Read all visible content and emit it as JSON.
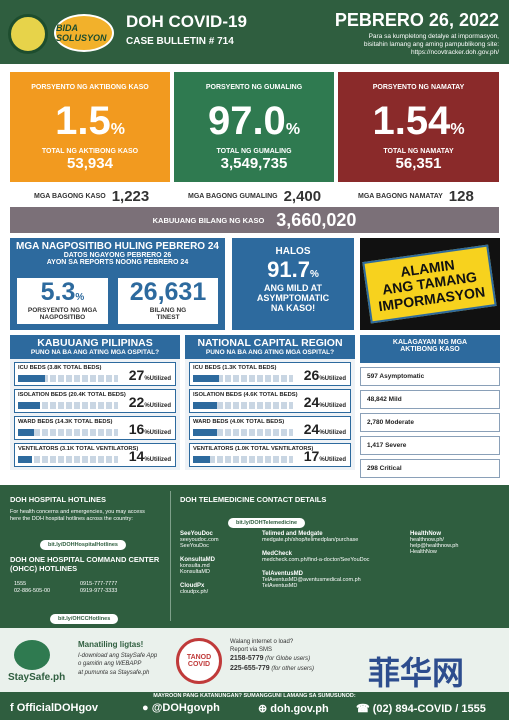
{
  "header": {
    "title": "DOH COVID-19",
    "bulletin": "CASE BULLETIN # 714",
    "logo2_text": "BIDA SOLUSYON",
    "date": "PEBRERO 26, 2022",
    "note1": "Para sa kumpletong detalye at impormasyon,",
    "note2": "bisitahin lamang ang aming pampublikong site:",
    "note3": "https://ncovtracker.doh.gov.ph/"
  },
  "active": {
    "label": "PORSYENTO NG AKTIBONG KASO",
    "pct": "1.5",
    "sub": "TOTAL NG AKTIBONG KASO",
    "num": "53,934",
    "color": "#f29a1f"
  },
  "recovered": {
    "label": "PORSYENTO NG GUMALING",
    "pct": "97.0",
    "sub": "TOTAL NG GUMALING",
    "num": "3,549,735",
    "color": "#2f7a50"
  },
  "deaths": {
    "label": "PORSYENTO NG NAMATAY",
    "pct": "1.54",
    "sub": "TOTAL NG NAMATAY",
    "num": "56,351",
    "color": "#8a2a2a"
  },
  "new": {
    "cases_label": "MGA BAGONG KASO",
    "cases": "1,223",
    "rec_label": "MGA BAGONG GUMALING",
    "rec": "2,400",
    "death_label": "MGA BAGONG NAMATAY",
    "death": "128"
  },
  "total": {
    "label": "KABUUANG BILANG NG KASO",
    "value": "3,660,020"
  },
  "positivity": {
    "title": "MGA NAGPOSITIBO HULING PEBRERO 24",
    "sub1": "DATOS NGAYONG PEBRERO 26",
    "sub2": "AYON SA REPORTS NOONG PEBRERO 24",
    "rate": "5.3",
    "rate_label1": "PORSYENTO NG MGA",
    "rate_label2": "NAGPOSITIBO",
    "tested": "26,631",
    "tested_label1": "BILANG NG",
    "tested_label2": "TINEST"
  },
  "halos": {
    "l1": "HALOS",
    "pct": "91.7",
    "l2": "ANG MILD AT",
    "l3": "ASYMPTOMATIC",
    "l4": "NA KASO!"
  },
  "alamin": {
    "l1": "ALAMIN",
    "l2": "ANG TAMANG",
    "l3": "IMPORMASYON"
  },
  "ph": {
    "title": "KABUUANG PILIPINAS",
    "sub": "PUNO NA BA ANG ATING MGA OSPITAL?",
    "rows": [
      {
        "label": "ICU BEDS (3.8K TOTAL BEDS)",
        "pct": "27",
        "util": 0.27
      },
      {
        "label": "ISOLATION BEDS (20.4K TOTAL BEDS)",
        "pct": "22",
        "util": 0.22
      },
      {
        "label": "WARD BEDS (14.3K TOTAL BEDS)",
        "pct": "16",
        "util": 0.16
      },
      {
        "label": "VENTILATORS (3.1K TOTAL VENTILATORS)",
        "pct": "14",
        "util": 0.14
      }
    ]
  },
  "ncr": {
    "title": "NATIONAL CAPITAL REGION",
    "sub": "PUNO NA BA ANG ATING MGA OSPITAL?",
    "rows": [
      {
        "label": "ICU BEDS (1.3K TOTAL BEDS)",
        "pct": "26",
        "util": 0.26
      },
      {
        "label": "ISOLATION BEDS (4.6K TOTAL BEDS)",
        "pct": "24",
        "util": 0.24
      },
      {
        "label": "WARD BEDS (4.0K TOTAL BEDS)",
        "pct": "24",
        "util": 0.24
      },
      {
        "label": "VENTILATORS (1.0K TOTAL VENTILATORS)",
        "pct": "17",
        "util": 0.17
      }
    ]
  },
  "util_word": "Utilized",
  "kalagayan": {
    "title1": "KALAGAYAN NG MGA",
    "title2": "AKTIBONG KASO",
    "items": [
      "597 Asymptomatic",
      "48,842 Mild",
      "2,780 Moderate",
      "1,417 Severe",
      "298 Critical"
    ]
  },
  "hotlines": {
    "title": "DOH HOSPITAL HOTLINES",
    "text1": "For health concerns and emergencies, you may access",
    "text2": "here the DOH hospital hotlines across the country:",
    "link": "bit.ly/DOHHospitalHotlines",
    "ohcc_title1": "DOH ONE HOSPITAL COMMAND CENTER",
    "ohcc_title2": "(OHCC) HOTLINES",
    "n1": "1555",
    "n2": "02-886-505-00",
    "n3": "0915-777-7777",
    "n4": "0919-977-3333",
    "ohcc_link": "bit.ly/OHCCHotlines"
  },
  "tele": {
    "title": "DOH TELEMEDICINE CONTACT DETAILS",
    "link": "bit.ly/DOHTelemedicine",
    "col1": [
      {
        "h": "SeeYouDoc",
        "a": "seeyoudoc.com",
        "b": "SeeYouDoc"
      },
      {
        "h": "KonsultaMD",
        "a": "konsulta.md",
        "b": "KonsultaMD"
      },
      {
        "h": "CloudPx",
        "a": "cloudpx.ph/",
        "b": ""
      }
    ],
    "col2": [
      {
        "h": "Telimed and Medgate",
        "a": "medgate.ph/shop/telimedplan/purchase",
        "b": ""
      },
      {
        "h": "MedCheck",
        "a": "medcheck.com.ph/find-a-doctor/SeeYouDoc",
        "b": ""
      },
      {
        "h": "TelAventusMD",
        "a": "TelAventusMD@aventusmedical.com.ph",
        "b": "TelAventusMD"
      }
    ],
    "col3": [
      {
        "h": "HealthNow",
        "a": "healthnow.ph/",
        "b": "help@healthnow.ph",
        "c": "HealthNow"
      }
    ]
  },
  "staysafe": {
    "brand": "StaySafe.ph",
    "h": "Manatiling ligtas!",
    "t1": "I-download ang StaySafe App",
    "t2": "o gamitin ang WEBAPP",
    "t3": "at pumunta sa Staysafe.ph",
    "tanod1": "TANOD",
    "tanod2": "COVID",
    "walang": "Walang internet o load?",
    "report": "Report via SMS",
    "g": "2158-5779",
    "gt": "(for Globe users)",
    "o": "225-655-779",
    "ot": "(for other users)"
  },
  "footer": {
    "top": "MAYROON PANG KATANUNGAN? SUMANGGUNI LAMANG SA SUMUSUNOD:",
    "fb": "OfficialDOHgov",
    "tw": "@DOHgovph",
    "web": "doh.gov.ph",
    "phone": "(02) 894-COVID / 1555"
  },
  "watermark": "菲华网"
}
